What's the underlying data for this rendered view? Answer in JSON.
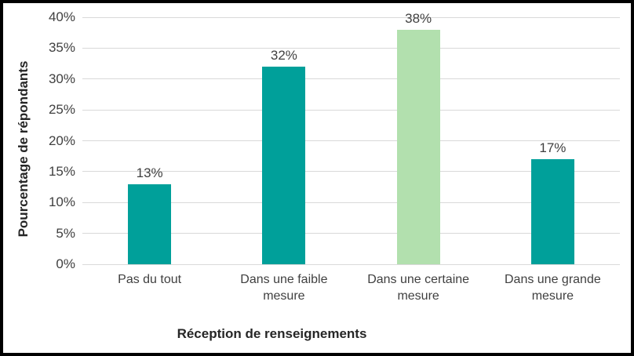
{
  "chart_data": {
    "type": "bar",
    "title": "",
    "categories": [
      "Pas du tout",
      "Dans une faible mesure",
      "Dans une certaine mesure",
      "Dans une grande mesure"
    ],
    "values": [
      13,
      32,
      38,
      17
    ],
    "data_labels": [
      "13%",
      "32%",
      "38%",
      "17%"
    ],
    "bar_colors": [
      "#00A09A",
      "#00A09A",
      "#B2E0AE",
      "#00A09A"
    ],
    "xlabel": "Réception de renseignements",
    "ylabel": "Pourcentage de répondants",
    "ylim": [
      0,
      40
    ],
    "ytick_step": 5,
    "ytick_labels": [
      "0%",
      "5%",
      "10%",
      "15%",
      "20%",
      "25%",
      "30%",
      "35%",
      "40%"
    ],
    "grid": true,
    "legend": "none",
    "colors": {
      "gridline": "#D9D9D9",
      "tick_label": "#404040",
      "data_label": "#404040",
      "category_label": "#404040",
      "axis_title": "#262626",
      "background": "#FFFFFF",
      "border": "#000000",
      "bar_teal": "#00A09A",
      "bar_light_green": "#B2E0AE"
    }
  }
}
